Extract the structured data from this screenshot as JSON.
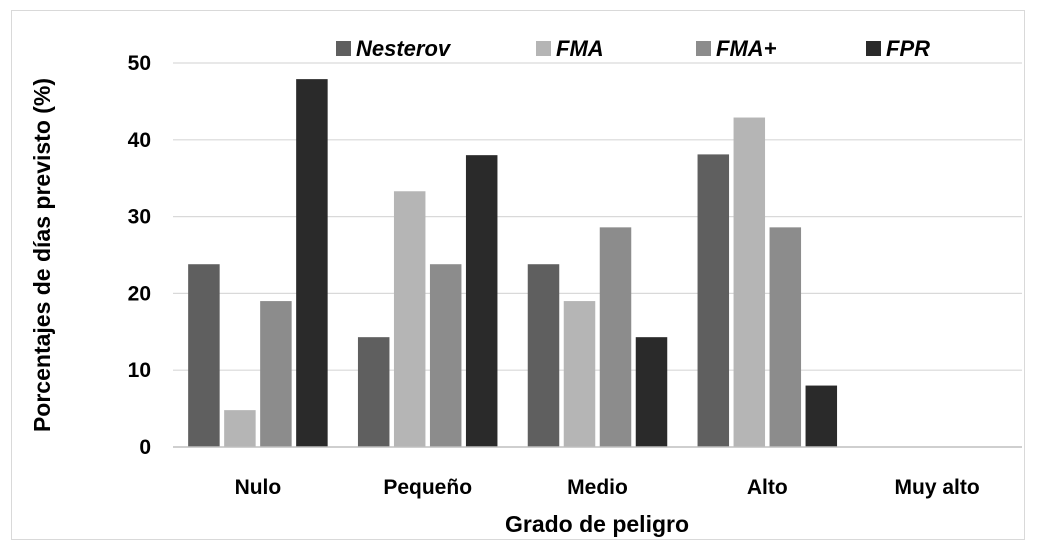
{
  "chart_data": {
    "type": "bar",
    "categories": [
      "Nulo",
      "Pequeño",
      "Medio",
      "Alto",
      "Muy alto"
    ],
    "series": [
      {
        "name": "Nesterov",
        "values": [
          23.8,
          14.3,
          23.8,
          38.1,
          0
        ],
        "color": "#5f5f5f"
      },
      {
        "name": "FMA",
        "values": [
          4.8,
          33.3,
          19.0,
          42.9,
          0
        ],
        "color": "#b5b5b5"
      },
      {
        "name": "FMA+",
        "values": [
          19.0,
          23.8,
          28.6,
          28.6,
          0
        ],
        "color": "#8c8c8c"
      },
      {
        "name": "FPR",
        "values": [
          47.9,
          38.0,
          14.3,
          8.0,
          0
        ],
        "color": "#2a2a2a"
      }
    ],
    "xlabel": "Grado de peligro",
    "ylabel": "Porcentajes de días previsto (%)",
    "ylim": [
      0,
      50
    ],
    "yticks": [
      0,
      10,
      20,
      30,
      40,
      50
    ],
    "grid": true,
    "legend_position": "top"
  }
}
